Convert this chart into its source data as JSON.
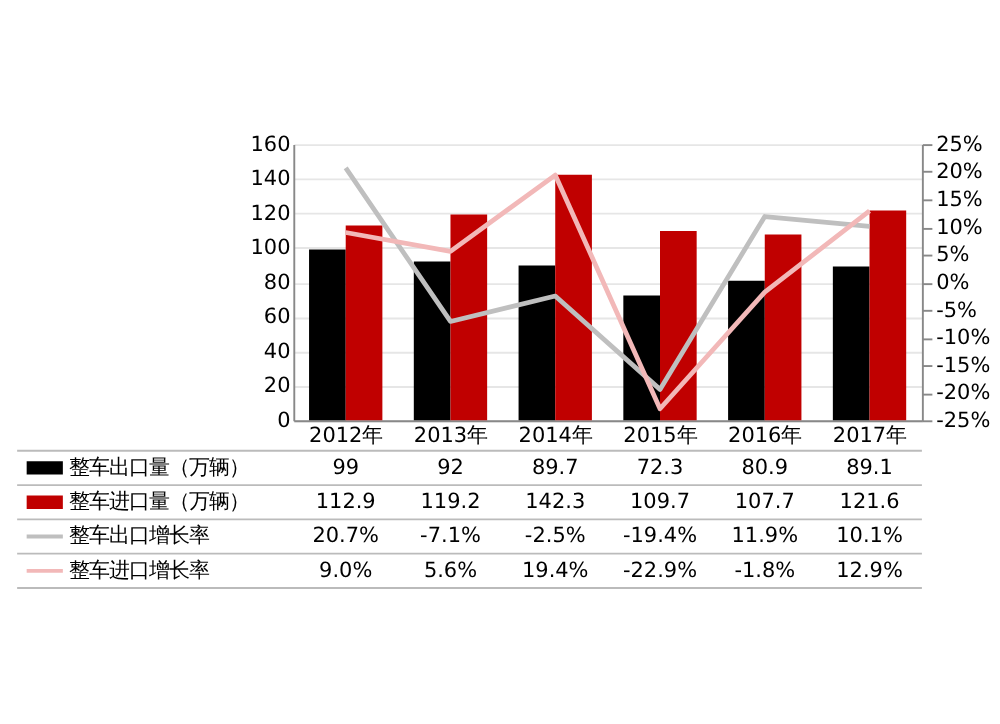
{
  "chart_data": {
    "type": "bar",
    "categories": [
      "2012年",
      "2013年",
      "2014年",
      "2015年",
      "2016年",
      "2017年"
    ],
    "series": [
      {
        "name": "整车出口量（万辆）",
        "color": "#000000",
        "values": [
          99,
          92,
          89.7,
          72.3,
          80.9,
          89.1
        ],
        "value_labels": [
          "99",
          "92",
          "89.7",
          "72.3",
          "80.9",
          "89.1"
        ]
      },
      {
        "name": "整车进口量（万辆）",
        "color": "#c00000",
        "values": [
          112.9,
          119.2,
          142.3,
          109.7,
          107.7,
          121.6
        ],
        "value_labels": [
          "112.9",
          "119.2",
          "142.3",
          "109.7",
          "107.7",
          "121.6"
        ]
      },
      {
        "name": "整车出口增长率",
        "type": "line",
        "axis": "y2",
        "color": "#bfbfbf",
        "values": [
          20.7,
          -7.1,
          -2.5,
          -19.4,
          11.9,
          10.1
        ],
        "value_labels": [
          "20.7%",
          "-7.1%",
          "-2.5%",
          "-19.4%",
          "11.9%",
          "10.1%"
        ]
      },
      {
        "name": "整车进口增长率",
        "type": "line",
        "axis": "y2",
        "color": "#f2b8b8",
        "values": [
          9.0,
          5.6,
          19.4,
          -22.9,
          -1.8,
          12.9
        ],
        "value_labels": [
          "9.0%",
          "5.6%",
          "19.4%",
          "-22.9%",
          "-1.8%",
          "12.9%"
        ]
      }
    ],
    "ylim": [
      0,
      160
    ],
    "yticks": [
      0,
      20,
      40,
      60,
      80,
      100,
      120,
      140,
      160
    ],
    "y2lim": [
      -25,
      25
    ],
    "y2ticks": [
      {
        "value": 25,
        "label": "25%"
      },
      {
        "value": 20,
        "label": "20%"
      },
      {
        "value": 15,
        "label": "15%"
      },
      {
        "value": 10,
        "label": "10%"
      },
      {
        "value": 5,
        "label": "5%"
      },
      {
        "value": 0,
        "label": "0%"
      },
      {
        "value": -5,
        "label": "-5%"
      },
      {
        "value": -10,
        "label": "-10%"
      },
      {
        "value": -15,
        "label": "-15%"
      },
      {
        "value": -20,
        "label": "-20%"
      },
      {
        "value": -25,
        "label": "-25%"
      }
    ],
    "grid": "y",
    "legend": "left"
  }
}
